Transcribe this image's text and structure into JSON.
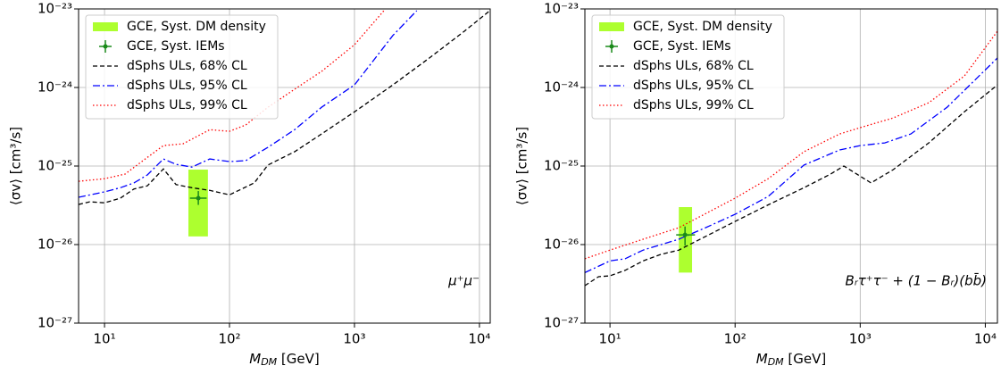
{
  "chart_data": [
    {
      "type": "line",
      "xscale": "log",
      "yscale": "log",
      "grid": true,
      "legend": "upper left",
      "xlabel": "M_DM [GeV]",
      "ylabel": "⟨σv⟩ [cm³/s]",
      "annotation": "μ⁺μ⁻",
      "xlim": [
        6.2,
        12200
      ],
      "ylim": [
        1e-27,
        1e-23
      ],
      "xticks": [
        {
          "value": 10,
          "label": "10¹"
        },
        {
          "value": 100,
          "label": "10²"
        },
        {
          "value": 1000,
          "label": "10³"
        },
        {
          "value": 10000,
          "label": "10⁴"
        }
      ],
      "yticks": [
        {
          "value": 1e-27,
          "label": "10⁻²⁷"
        },
        {
          "value": 1e-26,
          "label": "10⁻²⁶"
        },
        {
          "value": 1e-25,
          "label": "10⁻²⁵"
        },
        {
          "value": 1e-24,
          "label": "10⁻²⁴"
        },
        {
          "value": 1e-23,
          "label": "10⁻²³"
        }
      ],
      "band": {
        "name": "GCE, Syst. DM density",
        "color": "#adff2f",
        "x": [
          46.9,
          67.2
        ],
        "y": [
          1.27e-26,
          9e-26
        ]
      },
      "point": {
        "name": "GCE, Syst. IEMs",
        "color": "#1a8a1a",
        "x": 56.3,
        "y": 3.9e-26,
        "x_range": [
          48.3,
          65.6
        ],
        "y_range": [
          3.2e-26,
          4.8e-26
        ]
      },
      "series": [
        {
          "name": "dSphs ULs, 68% CL",
          "color": "#000000",
          "dash": "5,3",
          "x": [
            6.2,
            7.6,
            10,
            13.4,
            17.2,
            22,
            29.6,
            37.3,
            50,
            69.5,
            100,
            158,
            203,
            332,
            545,
            1000,
            2030,
            3970,
            7570,
            12100
          ],
          "values": [
            3.24e-26,
            3.5e-26,
            3.4e-26,
            3.9e-26,
            5.1e-26,
            5.6e-26,
            9.2e-26,
            5.8e-26,
            5.3e-26,
            4.9e-26,
            4.3e-26,
            6.1e-26,
            1.03e-25,
            1.52e-25,
            2.56e-25,
            4.9e-25,
            1.08e-24,
            2.37e-24,
            5.2e-24,
            9.5e-24
          ]
        },
        {
          "name": "dSphs ULs, 95% CL",
          "color": "#0000ff",
          "dash": "8,3,2,3",
          "x": [
            6.2,
            10,
            13.4,
            17.2,
            22,
            29.6,
            37.3,
            50,
            69.5,
            100,
            135,
            203,
            332,
            545,
            1000,
            2030,
            3150
          ],
          "values": [
            4e-26,
            4.7e-26,
            5.3e-26,
            6.1e-26,
            7.7e-26,
            1.23e-25,
            1.05e-25,
            9.7e-26,
            1.23e-25,
            1.14e-25,
            1.17e-25,
            1.73e-25,
            2.9e-25,
            5.6e-25,
            1.08e-24,
            4.6e-24,
            9.5e-24
          ]
        },
        {
          "name": "dSphs ULs, 99% CL",
          "color": "#ff0000",
          "dash": "1.5,2.5",
          "x": [
            6.2,
            10,
            14.6,
            20.3,
            29.6,
            42.5,
            69.5,
            100,
            135,
            203,
            332,
            545,
            1000,
            1720
          ],
          "values": [
            6.4e-26,
            6.9e-26,
            7.9e-26,
            1.17e-25,
            1.82e-25,
            1.92e-25,
            2.9e-25,
            2.77e-25,
            3.33e-25,
            5.6e-25,
            9.5e-25,
            1.6e-24,
            3.5e-24,
            9.5e-24
          ]
        }
      ]
    },
    {
      "type": "line",
      "xscale": "log",
      "yscale": "log",
      "grid": true,
      "legend": "upper left",
      "xlabel": "M_DM [GeV]",
      "ylabel": "⟨σv⟩ [cm³/s]",
      "annotation": "Bᵣτ⁺τ⁻ + (1 − Bᵣ)(bb̄)",
      "xlim": [
        6.3,
        12500
      ],
      "ylim": [
        1e-27,
        1e-23
      ],
      "xticks": [
        {
          "value": 10,
          "label": "10¹"
        },
        {
          "value": 100,
          "label": "10²"
        },
        {
          "value": 1000,
          "label": "10³"
        },
        {
          "value": 10000,
          "label": "10⁴"
        }
      ],
      "yticks": [
        {
          "value": 1e-27,
          "label": "10⁻²⁷"
        },
        {
          "value": 1e-26,
          "label": "10⁻²⁶"
        },
        {
          "value": 1e-25,
          "label": "10⁻²⁵"
        },
        {
          "value": 1e-24,
          "label": "10⁻²⁴"
        },
        {
          "value": 1e-23,
          "label": "10⁻²³"
        }
      ],
      "band": {
        "name": "GCE, Syst. DM density",
        "color": "#adff2f",
        "x": [
          35.5,
          45.3
        ],
        "y": [
          4.4e-27,
          3e-26
        ]
      },
      "point": {
        "name": "GCE, Syst. IEMs",
        "color": "#1a8a1a",
        "x": 39.8,
        "y": 1.33e-26,
        "x_range": [
          33.8,
          47.8
        ],
        "y_range": [
          9.7e-27,
          1.7e-26
        ]
      },
      "series": [
        {
          "name": "dSphs ULs, 68% CL",
          "color": "#000000",
          "dash": "5,3",
          "x": [
            6.3,
            8.1,
            10,
            13.2,
            18.4,
            25.5,
            35.5,
            58,
            100,
            184,
            355,
            580,
            740,
            1220,
            1840,
            3530,
            6810,
            12500
          ],
          "values": [
            3e-27,
            3.9e-27,
            4e-27,
            4.7e-27,
            6.2e-27,
            7.5e-27,
            8.5e-27,
            1.27e-26,
            1.97e-26,
            3.2e-26,
            5.3e-26,
            7.9e-26,
            1e-25,
            6.1e-26,
            9e-26,
            1.97e-25,
            4.9e-25,
            1.08e-24
          ]
        },
        {
          "name": "dSphs ULs, 95% CL",
          "color": "#0000ff",
          "dash": "8,3,2,3",
          "x": [
            6.3,
            10,
            13.2,
            18.4,
            35.5,
            58,
            100,
            184,
            355,
            685,
            1000,
            1570,
            2540,
            4950,
            12500
          ],
          "values": [
            4.4e-27,
            6.2e-27,
            6.6e-27,
            8.5e-27,
            1.17e-26,
            1.64e-26,
            2.43e-26,
            4.1e-26,
            1.03e-25,
            1.6e-25,
            1.82e-25,
            1.97e-25,
            2.56e-25,
            5.6e-25,
            2.37e-24
          ]
        },
        {
          "name": "dSphs ULs, 99% CL",
          "color": "#ff0000",
          "dash": "1.5,2.5",
          "x": [
            6.3,
            10,
            18.4,
            35.5,
            100,
            184,
            355,
            685,
            1000,
            1840,
            3530,
            6810,
            12500
          ],
          "values": [
            6.6e-27,
            8.5e-27,
            1.17e-26,
            1.64e-26,
            3.9e-26,
            6.9e-26,
            1.52e-25,
            2.56e-25,
            3.08e-25,
            4.1e-25,
            6.4e-25,
            1.4e-24,
            5.2e-24
          ]
        }
      ]
    }
  ]
}
